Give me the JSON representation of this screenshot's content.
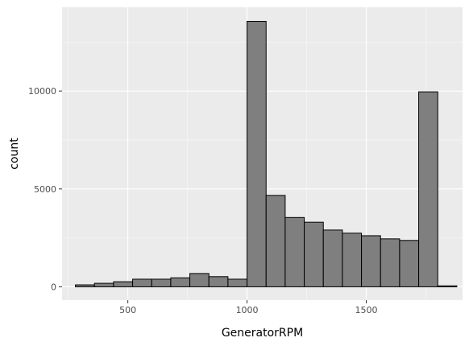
{
  "chart_data": {
    "type": "histogram",
    "title": "",
    "xlabel": "GeneratorRPM",
    "ylabel": "count",
    "xlim": [
      224,
      1904
    ],
    "ylim": [
      -680,
      14280
    ],
    "x_ticks": [
      500,
      1000,
      1500
    ],
    "y_ticks": [
      0,
      5000,
      10000
    ],
    "grid": true,
    "legend": "none",
    "colors": {
      "panel": "#ebebeb",
      "grid_major": "#ffffff",
      "bar_fill": "#7f7f7f",
      "bar_outline": "#000000",
      "tick_text": "#4d4d4d",
      "tick_mark": "#333333"
    },
    "bins": [
      {
        "x0": 280,
        "x1": 360,
        "count": 100
      },
      {
        "x0": 360,
        "x1": 440,
        "count": 180
      },
      {
        "x0": 440,
        "x1": 520,
        "count": 260
      },
      {
        "x0": 520,
        "x1": 600,
        "count": 390
      },
      {
        "x0": 600,
        "x1": 680,
        "count": 390
      },
      {
        "x0": 680,
        "x1": 760,
        "count": 460
      },
      {
        "x0": 760,
        "x1": 840,
        "count": 680
      },
      {
        "x0": 840,
        "x1": 920,
        "count": 520
      },
      {
        "x0": 920,
        "x1": 1000,
        "count": 390
      },
      {
        "x0": 1000,
        "x1": 1080,
        "count": 13560
      },
      {
        "x0": 1080,
        "x1": 1160,
        "count": 4670
      },
      {
        "x0": 1160,
        "x1": 1240,
        "count": 3540
      },
      {
        "x0": 1240,
        "x1": 1320,
        "count": 3300
      },
      {
        "x0": 1320,
        "x1": 1400,
        "count": 2900
      },
      {
        "x0": 1400,
        "x1": 1480,
        "count": 2740
      },
      {
        "x0": 1480,
        "x1": 1560,
        "count": 2610
      },
      {
        "x0": 1560,
        "x1": 1640,
        "count": 2450
      },
      {
        "x0": 1640,
        "x1": 1720,
        "count": 2370
      },
      {
        "x0": 1720,
        "x1": 1800,
        "count": 9960
      },
      {
        "x0": 1800,
        "x1": 1880,
        "count": 50
      }
    ]
  }
}
